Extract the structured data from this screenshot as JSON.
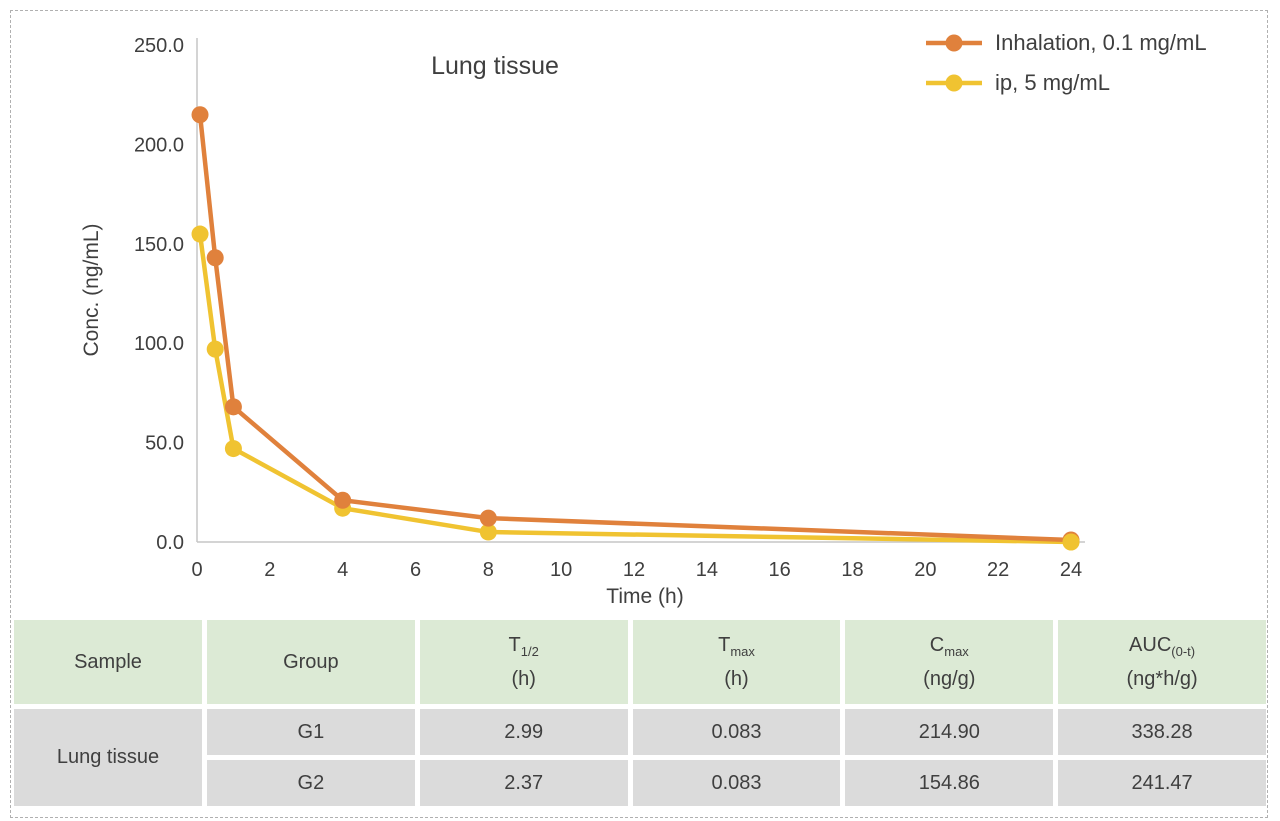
{
  "chart": {
    "title": "Lung tissue",
    "x_label": "Time (h)",
    "y_label": "Conc. (ng/mL)",
    "legend": [
      {
        "label": "Inhalation, 0.1 mg/mL",
        "color": "#e0813c"
      },
      {
        "label": "ip, 5 mg/mL",
        "color": "#f0c331"
      }
    ]
  },
  "chart_data": {
    "type": "line",
    "title": "Lung tissue",
    "xlabel": "Time (h)",
    "ylabel": "Conc. (ng/mL)",
    "xlim": [
      0,
      24
    ],
    "ylim": [
      0,
      250
    ],
    "x_ticks": [
      "0",
      "2",
      "4",
      "6",
      "8",
      "10",
      "12",
      "14",
      "16",
      "18",
      "20",
      "22",
      "24"
    ],
    "y_ticks": [
      "0.0",
      "50.0",
      "100.0",
      "150.0",
      "200.0",
      "250.0"
    ],
    "x": [
      0.083,
      0.5,
      1,
      4,
      8,
      24
    ],
    "series": [
      {
        "name": "Inhalation, 0.1 mg/mL",
        "color": "#e0813c",
        "values": [
          214.9,
          143,
          68,
          21,
          12,
          1
        ]
      },
      {
        "name": "ip, 5 mg/mL",
        "color": "#f0c331",
        "values": [
          154.9,
          97,
          47,
          17,
          5,
          0
        ]
      }
    ],
    "legend_position": "top-right",
    "grid": false
  },
  "table": {
    "headers": [
      {
        "base": "Sample",
        "sub": "",
        "unit": ""
      },
      {
        "base": "Group",
        "sub": "",
        "unit": ""
      },
      {
        "base": "T",
        "sub": "1/2",
        "unit": "(h)"
      },
      {
        "base": "T",
        "sub": "max",
        "unit": "(h)"
      },
      {
        "base": "C",
        "sub": "max",
        "unit": "(ng/g)"
      },
      {
        "base": "AUC",
        "sub": "(0-t)",
        "unit": "(ng*h/g)"
      }
    ],
    "sample": "Lung tissue",
    "rows": [
      {
        "group": "G1",
        "t_half": "2.99",
        "t_max": "0.083",
        "c_max": "214.90",
        "auc": "338.28"
      },
      {
        "group": "G2",
        "t_half": "2.37",
        "t_max": "0.083",
        "c_max": "154.86",
        "auc": "241.47"
      }
    ]
  },
  "colors": {
    "axis": "#c6c6c6",
    "text": "#3f3f3f",
    "table_header_bg": "#dcead5",
    "table_body_bg": "#dbdbdb",
    "frame_dash": "#b0b0b0"
  }
}
